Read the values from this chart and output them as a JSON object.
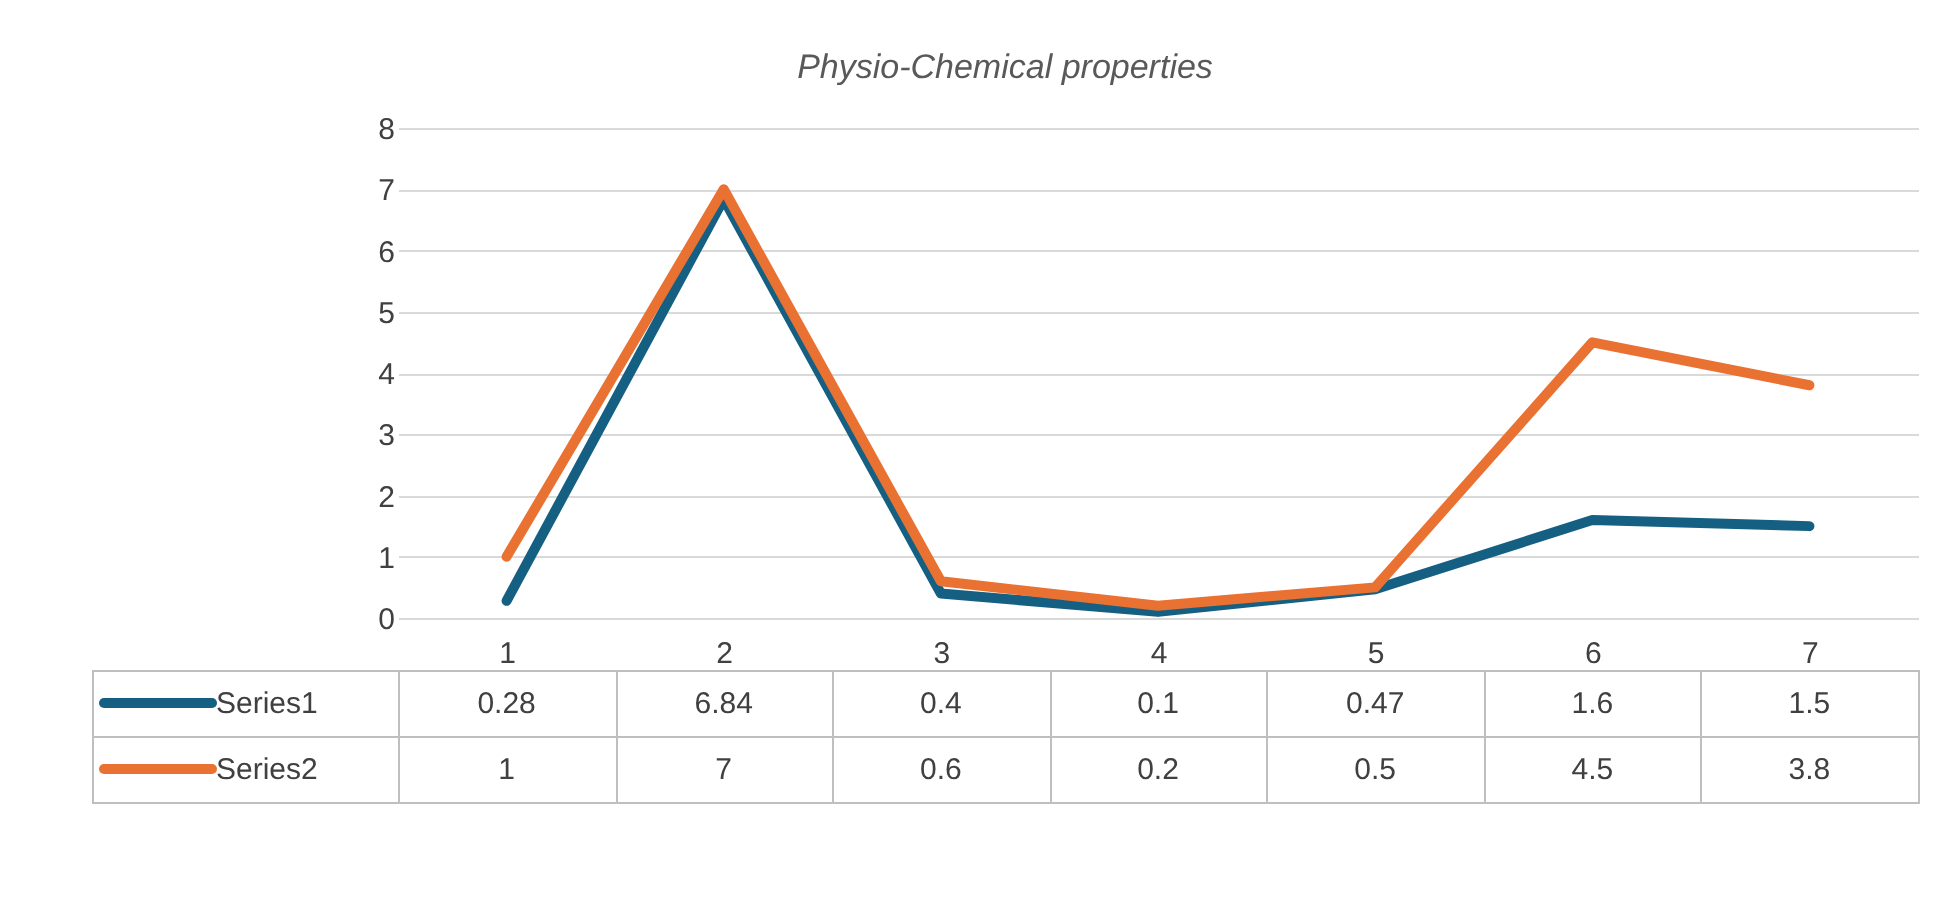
{
  "chart_data": {
    "type": "line",
    "title": "Physio-Chemical properties",
    "categories": [
      "1",
      "2",
      "3",
      "4",
      "5",
      "6",
      "7"
    ],
    "series": [
      {
        "name": "Series1",
        "color": "#156082",
        "values": [
          0.28,
          6.84,
          0.4,
          0.1,
          0.47,
          1.6,
          1.5
        ]
      },
      {
        "name": "Series2",
        "color": "#e97132",
        "values": [
          1,
          7,
          0.6,
          0.2,
          0.5,
          4.5,
          3.8
        ]
      }
    ],
    "ylim": [
      0,
      8
    ],
    "yticks": [
      0,
      1,
      2,
      3,
      4,
      5,
      6,
      7,
      8
    ],
    "grid": "y",
    "legend": "bottom",
    "data_labels": true
  }
}
